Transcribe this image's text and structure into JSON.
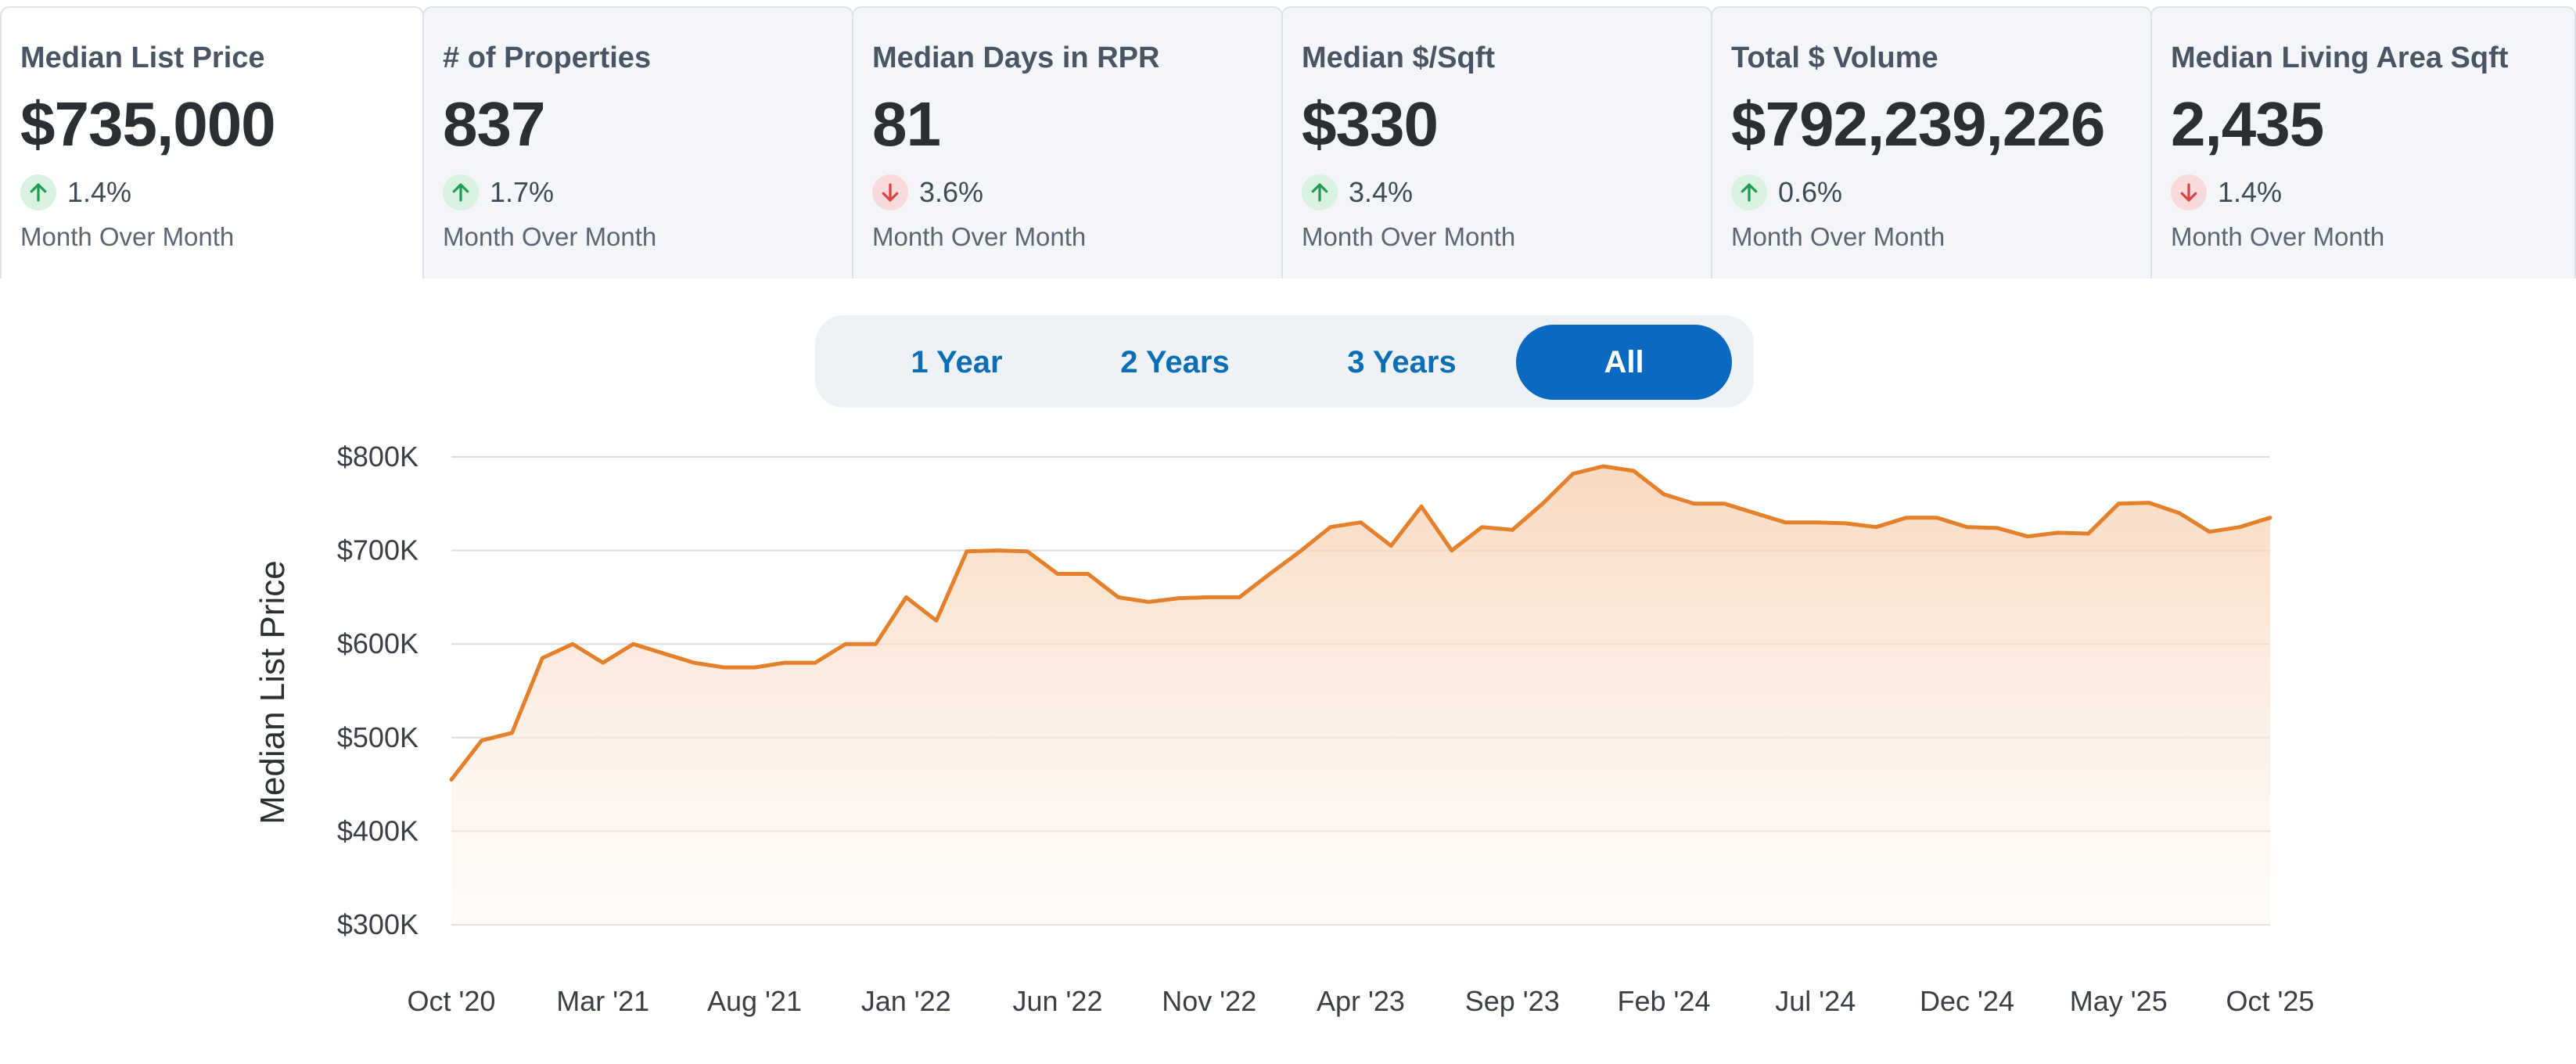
{
  "cards": [
    {
      "title": "Median List Price",
      "value": "$735,000",
      "direction": "up",
      "change": "1.4%",
      "sub": "Month Over Month"
    },
    {
      "title": "# of Properties",
      "value": "837",
      "direction": "up",
      "change": "1.7%",
      "sub": "Month Over Month"
    },
    {
      "title": "Median Days in RPR",
      "value": "81",
      "direction": "down",
      "change": "3.6%",
      "sub": "Month Over Month"
    },
    {
      "title": "Median $/Sqft",
      "value": "$330",
      "direction": "up",
      "change": "3.4%",
      "sub": "Month Over Month"
    },
    {
      "title": "Total $ Volume",
      "value": "$792,239,226",
      "direction": "up",
      "change": "0.6%",
      "sub": "Month Over Month"
    },
    {
      "title": "Median Living Area Sqft",
      "value": "2,435",
      "direction": "down",
      "change": "1.4%",
      "sub": "Month Over Month"
    }
  ],
  "range": {
    "options": [
      "1 Year",
      "2 Years",
      "3 Years",
      "All"
    ],
    "selected": "All"
  },
  "colors": {
    "up": "#1f9d55",
    "down": "#d64545",
    "line": "#e47f2a",
    "fill": "#f8d5b8",
    "accent": "#0a6ac2"
  },
  "chart_data": {
    "type": "area",
    "ylabel": "Median List Price",
    "ylim": [
      300000,
      800000
    ],
    "y_ticks": [
      "$300K",
      "$400K",
      "$500K",
      "$600K",
      "$700K",
      "$800K"
    ],
    "x_ticks": [
      "Oct '20",
      "Mar '21",
      "Aug '21",
      "Jan '22",
      "Jun '22",
      "Nov '22",
      "Apr '23",
      "Sep '23",
      "Feb '24",
      "Jul '24",
      "Dec '24",
      "May '25",
      "Oct '25"
    ],
    "grid": true,
    "series": [
      {
        "x": [
          "2020-10",
          "2020-11",
          "2020-12",
          "2021-01",
          "2021-02",
          "2021-03",
          "2021-04",
          "2021-05",
          "2021-06",
          "2021-07",
          "2021-08",
          "2021-09",
          "2021-10",
          "2021-11",
          "2021-12",
          "2022-01",
          "2022-02",
          "2022-03",
          "2022-04",
          "2022-05",
          "2022-06",
          "2022-07",
          "2022-08",
          "2022-09",
          "2022-10",
          "2022-11",
          "2022-12",
          "2023-01",
          "2023-02",
          "2023-03",
          "2023-04",
          "2023-05",
          "2023-06",
          "2023-07",
          "2023-08",
          "2023-09",
          "2023-10",
          "2023-11",
          "2023-12",
          "2024-01",
          "2024-02",
          "2024-03",
          "2024-04",
          "2024-05",
          "2024-06",
          "2024-07",
          "2024-08",
          "2024-09",
          "2024-10",
          "2024-11",
          "2024-12",
          "2025-01",
          "2025-02",
          "2025-03",
          "2025-04",
          "2025-05",
          "2025-06",
          "2025-07",
          "2025-08",
          "2025-09",
          "2025-10"
        ],
        "values": [
          455000,
          497000,
          505000,
          585000,
          600000,
          580000,
          600000,
          590000,
          580000,
          575000,
          575000,
          580000,
          580000,
          600000,
          600000,
          650000,
          625000,
          699000,
          700000,
          699000,
          675000,
          675000,
          650000,
          645000,
          649000,
          650000,
          650000,
          675000,
          699000,
          725000,
          730000,
          705000,
          747000,
          700000,
          725000,
          722000,
          750000,
          782000,
          790000,
          785000,
          760000,
          750000,
          750000,
          740000,
          730000,
          730000,
          729000,
          725000,
          735000,
          735000,
          725000,
          724000,
          715000,
          719000,
          718000,
          750000,
          751000,
          740000,
          720000,
          725000,
          735000
        ]
      }
    ]
  }
}
